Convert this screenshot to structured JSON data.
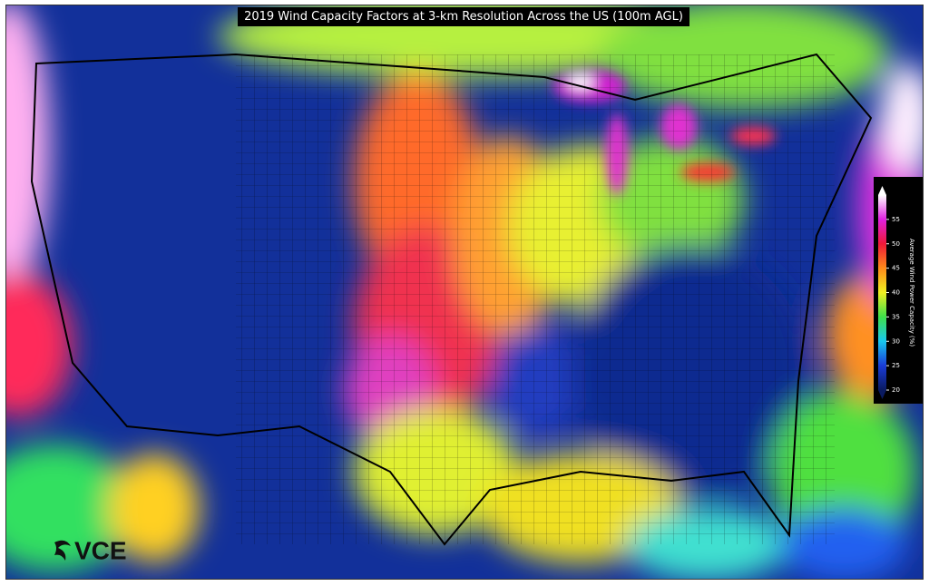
{
  "title": "2019 Wind Capacity Factors at 3-km Resolution Across the US (100m AGL)",
  "colorbar": {
    "label": "Average Wind Power Capacity (%)",
    "lim": [
      20,
      60
    ],
    "ticks": [
      20,
      25,
      30,
      35,
      40,
      45,
      50,
      55
    ],
    "colors": [
      "#0a1a60",
      "#1a3cd8",
      "#18c8f0",
      "#3ee04a",
      "#f0f020",
      "#ff8a1a",
      "#f01838",
      "#e020e0",
      "#ffffff"
    ]
  },
  "logo": "VCE"
}
